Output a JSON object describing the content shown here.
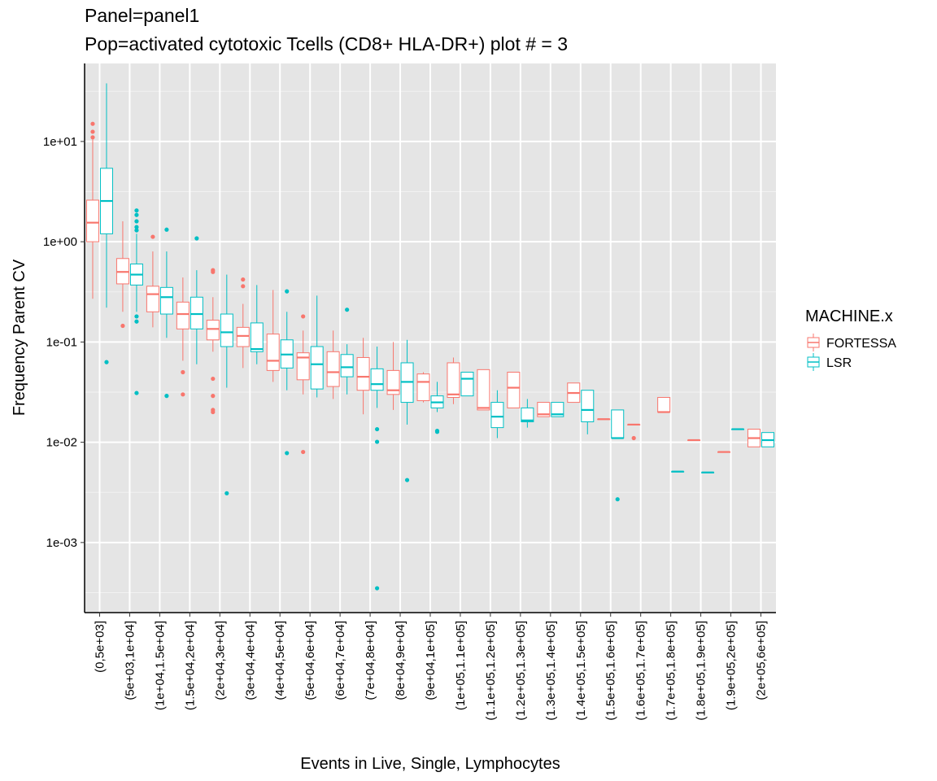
{
  "chart_data": {
    "type": "boxplot",
    "title": "Panel=panel1",
    "subtitle": "Pop=activated cytotoxic Tcells (CD8+ HLA-DR+) plot # = 3",
    "xlabel": "Events in Live, Single, Lymphocytes",
    "ylabel": "Frequency Parent CV",
    "y_scale": "log10",
    "ylim": [
      0.0002,
      60
    ],
    "y_ticks": [
      {
        "value": 10,
        "label": "1e+01"
      },
      {
        "value": 1,
        "label": "1e+00"
      },
      {
        "value": 0.1,
        "label": "1e-01"
      },
      {
        "value": 0.01,
        "label": "1e-02"
      },
      {
        "value": 0.001,
        "label": "1e-03"
      }
    ],
    "grid": true,
    "legend": {
      "title": "MACHINE.x",
      "position": "right"
    },
    "categories": [
      "(0,5e+03]",
      "(5e+03,1e+04]",
      "(1e+04,1.5e+04]",
      "(1.5e+04,2e+04]",
      "(2e+04,3e+04]",
      "(3e+04,4e+04]",
      "(4e+04,5e+04]",
      "(5e+04,6e+04]",
      "(6e+04,7e+04]",
      "(7e+04,8e+04]",
      "(8e+04,9e+04]",
      "(9e+04,1e+05]",
      "(1e+05,1.1e+05]",
      "(1.1e+05,1.2e+05]",
      "(1.2e+05,1.3e+05]",
      "(1.3e+05,1.4e+05]",
      "(1.4e+05,1.5e+05]",
      "(1.5e+05,1.6e+05]",
      "(1.6e+05,1.7e+05]",
      "(1.7e+05,1.8e+05]",
      "(1.8e+05,1.9e+05]",
      "(1.9e+05,2e+05]",
      "(2e+05,6e+05]"
    ],
    "series": [
      {
        "name": "FORTESSA",
        "color": "#F8766D",
        "boxes": [
          {
            "cat": 0,
            "lw": 0.27,
            "q1": 1.0,
            "med": 1.55,
            "q3": 2.6,
            "uw": 10.5,
            "out": [
              15,
              12.5,
              11
            ]
          },
          {
            "cat": 1,
            "lw": 0.2,
            "q1": 0.38,
            "med": 0.5,
            "q3": 0.68,
            "uw": 1.6,
            "out": [
              0.145
            ]
          },
          {
            "cat": 2,
            "lw": 0.14,
            "q1": 0.2,
            "med": 0.3,
            "q3": 0.36,
            "uw": 0.8,
            "out": [
              1.12
            ]
          },
          {
            "cat": 3,
            "lw": 0.065,
            "q1": 0.135,
            "med": 0.19,
            "q3": 0.25,
            "uw": 0.44,
            "out": [
              0.05,
              0.03
            ]
          },
          {
            "cat": 4,
            "lw": 0.08,
            "q1": 0.105,
            "med": 0.135,
            "q3": 0.165,
            "uw": 0.28,
            "out": [
              0.52,
              0.5,
              0.043,
              0.029,
              0.021,
              0.02
            ]
          },
          {
            "cat": 5,
            "lw": 0.055,
            "q1": 0.09,
            "med": 0.115,
            "q3": 0.14,
            "uw": 0.24,
            "out": [
              0.42,
              0.36
            ]
          },
          {
            "cat": 6,
            "lw": 0.04,
            "q1": 0.052,
            "med": 0.065,
            "q3": 0.12,
            "uw": 0.33,
            "out": []
          },
          {
            "cat": 7,
            "lw": 0.03,
            "q1": 0.042,
            "med": 0.07,
            "q3": 0.078,
            "uw": 0.13,
            "out": [
              0.18,
              0.008
            ]
          },
          {
            "cat": 8,
            "lw": 0.027,
            "q1": 0.036,
            "med": 0.05,
            "q3": 0.08,
            "uw": 0.13,
            "out": []
          },
          {
            "cat": 9,
            "lw": 0.019,
            "q1": 0.033,
            "med": 0.045,
            "q3": 0.07,
            "uw": 0.11,
            "out": []
          },
          {
            "cat": 10,
            "lw": 0.021,
            "q1": 0.03,
            "med": 0.033,
            "q3": 0.052,
            "uw": 0.1,
            "out": []
          },
          {
            "cat": 11,
            "lw": 0.025,
            "q1": 0.026,
            "med": 0.04,
            "q3": 0.048,
            "uw": 0.05,
            "out": []
          },
          {
            "cat": 12,
            "lw": 0.024,
            "q1": 0.028,
            "med": 0.03,
            "q3": 0.062,
            "uw": 0.07,
            "out": []
          },
          {
            "cat": 13,
            "lw": 0.021,
            "q1": 0.021,
            "med": 0.022,
            "q3": 0.053,
            "uw": 0.053,
            "out": []
          },
          {
            "cat": 14,
            "lw": 0.022,
            "q1": 0.022,
            "med": 0.035,
            "q3": 0.05,
            "uw": 0.05,
            "out": []
          },
          {
            "cat": 15,
            "lw": 0.018,
            "q1": 0.018,
            "med": 0.019,
            "q3": 0.025,
            "uw": 0.025,
            "out": []
          },
          {
            "cat": 16,
            "lw": 0.025,
            "q1": 0.025,
            "med": 0.031,
            "q3": 0.039,
            "uw": 0.039,
            "out": []
          },
          {
            "cat": 17,
            "lw": 0.017,
            "q1": 0.017,
            "med": 0.017,
            "q3": 0.017,
            "uw": 0.017,
            "out": []
          },
          {
            "cat": 18,
            "lw": 0.015,
            "q1": 0.015,
            "med": 0.015,
            "q3": 0.015,
            "uw": 0.015,
            "out": [
              0.011
            ]
          },
          {
            "cat": 19,
            "lw": 0.02,
            "q1": 0.02,
            "med": 0.02,
            "q3": 0.028,
            "uw": 0.028,
            "out": []
          },
          {
            "cat": 20,
            "lw": 0.0105,
            "q1": 0.0105,
            "med": 0.0105,
            "q3": 0.0105,
            "uw": 0.0105,
            "out": []
          },
          {
            "cat": 21,
            "lw": 0.008,
            "q1": 0.008,
            "med": 0.008,
            "q3": 0.008,
            "uw": 0.008,
            "out": []
          },
          {
            "cat": 22,
            "lw": 0.009,
            "q1": 0.009,
            "med": 0.011,
            "q3": 0.0135,
            "uw": 0.0135,
            "out": []
          }
        ]
      },
      {
        "name": "LSR",
        "color": "#00BFC4",
        "boxes": [
          {
            "cat": 0,
            "lw": 0.22,
            "q1": 1.2,
            "med": 2.55,
            "q3": 5.4,
            "uw": 38,
            "out": [
              0.063
            ]
          },
          {
            "cat": 1,
            "lw": 0.2,
            "q1": 0.37,
            "med": 0.47,
            "q3": 0.6,
            "uw": 1.2,
            "out": [
              2.05,
              1.85,
              1.6,
              1.4,
              1.3,
              0.18,
              0.16,
              0.031
            ]
          },
          {
            "cat": 2,
            "lw": 0.11,
            "q1": 0.19,
            "med": 0.28,
            "q3": 0.35,
            "uw": 0.8,
            "out": [
              1.32,
              0.029
            ]
          },
          {
            "cat": 3,
            "lw": 0.06,
            "q1": 0.135,
            "med": 0.19,
            "q3": 0.28,
            "uw": 0.52,
            "out": [
              1.08
            ]
          },
          {
            "cat": 4,
            "lw": 0.035,
            "q1": 0.09,
            "med": 0.125,
            "q3": 0.19,
            "uw": 0.47,
            "out": [
              0.0031
            ]
          },
          {
            "cat": 5,
            "lw": 0.06,
            "q1": 0.08,
            "med": 0.085,
            "q3": 0.155,
            "uw": 0.37,
            "out": []
          },
          {
            "cat": 6,
            "lw": 0.033,
            "q1": 0.055,
            "med": 0.075,
            "q3": 0.105,
            "uw": 0.2,
            "out": [
              0.32,
              0.0078
            ]
          },
          {
            "cat": 7,
            "lw": 0.028,
            "q1": 0.034,
            "med": 0.06,
            "q3": 0.09,
            "uw": 0.29,
            "out": []
          },
          {
            "cat": 8,
            "lw": 0.03,
            "q1": 0.045,
            "med": 0.056,
            "q3": 0.075,
            "uw": 0.095,
            "out": [
              0.21
            ]
          },
          {
            "cat": 9,
            "lw": 0.022,
            "q1": 0.033,
            "med": 0.038,
            "q3": 0.054,
            "uw": 0.09,
            "out": [
              0.0135,
              0.0101,
              0.00035
            ]
          },
          {
            "cat": 10,
            "lw": 0.015,
            "q1": 0.025,
            "med": 0.04,
            "q3": 0.062,
            "uw": 0.105,
            "out": [
              0.0042
            ]
          },
          {
            "cat": 11,
            "lw": 0.02,
            "q1": 0.022,
            "med": 0.025,
            "q3": 0.029,
            "uw": 0.04,
            "out": [
              0.013,
              0.0127
            ]
          },
          {
            "cat": 12,
            "lw": 0.029,
            "q1": 0.029,
            "med": 0.043,
            "q3": 0.05,
            "uw": 0.05,
            "out": []
          },
          {
            "cat": 13,
            "lw": 0.011,
            "q1": 0.014,
            "med": 0.018,
            "q3": 0.025,
            "uw": 0.033,
            "out": []
          },
          {
            "cat": 14,
            "lw": 0.014,
            "q1": 0.016,
            "med": 0.0165,
            "q3": 0.022,
            "uw": 0.027,
            "out": []
          },
          {
            "cat": 15,
            "lw": 0.018,
            "q1": 0.018,
            "med": 0.019,
            "q3": 0.025,
            "uw": 0.025,
            "out": []
          },
          {
            "cat": 16,
            "lw": 0.012,
            "q1": 0.016,
            "med": 0.021,
            "q3": 0.033,
            "uw": 0.033,
            "out": []
          },
          {
            "cat": 17,
            "lw": 0.011,
            "q1": 0.011,
            "med": 0.011,
            "q3": 0.021,
            "uw": 0.021,
            "out": [
              0.0027
            ]
          },
          {
            "cat": 19,
            "lw": 0.0051,
            "q1": 0.0051,
            "med": 0.0051,
            "q3": 0.0051,
            "uw": 0.0051,
            "out": []
          },
          {
            "cat": 20,
            "lw": 0.005,
            "q1": 0.005,
            "med": 0.005,
            "q3": 0.005,
            "uw": 0.005,
            "out": []
          },
          {
            "cat": 21,
            "lw": 0.0135,
            "q1": 0.0135,
            "med": 0.0135,
            "q3": 0.0135,
            "uw": 0.0135,
            "out": []
          },
          {
            "cat": 22,
            "lw": 0.009,
            "q1": 0.009,
            "med": 0.0105,
            "q3": 0.0125,
            "uw": 0.0125,
            "out": []
          }
        ]
      }
    ]
  }
}
